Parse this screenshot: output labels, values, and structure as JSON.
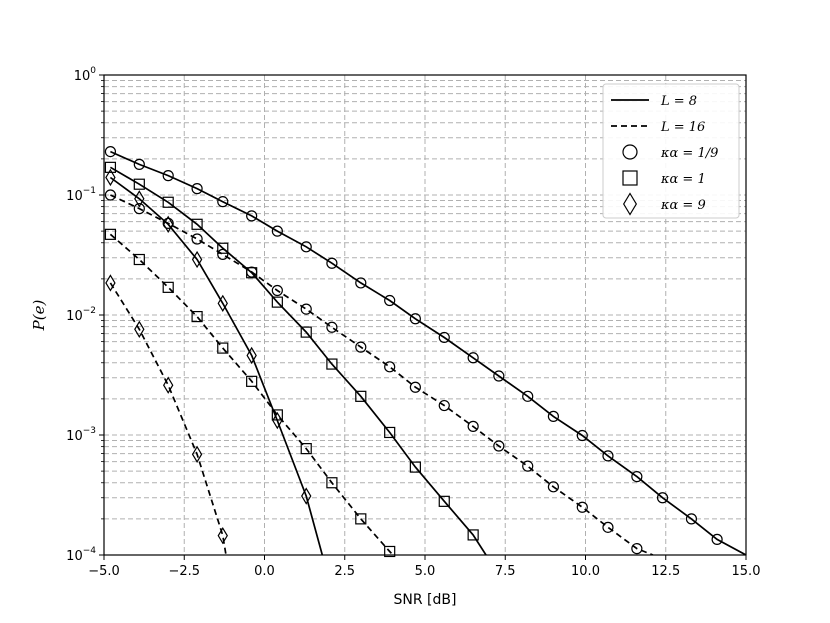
{
  "chart_data": {
    "type": "line",
    "title": "",
    "xlabel": "SNR [dB]",
    "ylabel": "P(e)",
    "xlim": [
      -5.0,
      15.0
    ],
    "ylim": [
      0.0001,
      1
    ],
    "yscale": "log",
    "grid": true,
    "legend_position": "top-right",
    "x_ticks": [
      "−5.0",
      "−2.5",
      "0.0",
      "2.5",
      "5.0",
      "7.5",
      "10.0",
      "12.5",
      "15.0"
    ],
    "y_ticks": [
      {
        "base": "10",
        "exp": "0"
      },
      {
        "base": "10",
        "exp": "−1"
      },
      {
        "base": "10",
        "exp": "−2"
      },
      {
        "base": "10",
        "exp": "−3"
      },
      {
        "base": "10",
        "exp": "−4"
      }
    ],
    "legend": {
      "lines": [
        {
          "label": "L = 8",
          "style": "solid"
        },
        {
          "label": "L = 16",
          "style": "dashed"
        }
      ],
      "markers": [
        {
          "label": "κα = 1/9",
          "marker": "circle"
        },
        {
          "label": "κα = 1",
          "marker": "square"
        },
        {
          "label": "κα = 9",
          "marker": "diamond"
        }
      ]
    },
    "series": [
      {
        "L": 8,
        "kappa": "1/9",
        "style": "solid",
        "marker": "circle",
        "points": [
          [
            -4.8,
            0.23
          ],
          [
            -3.9,
            0.18
          ],
          [
            -3.0,
            0.145
          ],
          [
            -2.1,
            0.113
          ],
          [
            -1.3,
            0.088
          ],
          [
            -0.4,
            0.067
          ],
          [
            0.4,
            0.05
          ],
          [
            1.3,
            0.037
          ],
          [
            2.1,
            0.027
          ],
          [
            3.0,
            0.0185
          ],
          [
            3.9,
            0.0132
          ],
          [
            4.7,
            0.0093
          ],
          [
            5.6,
            0.0065
          ],
          [
            6.5,
            0.0044
          ],
          [
            7.3,
            0.0031
          ],
          [
            8.2,
            0.0021
          ],
          [
            9.0,
            0.00143
          ],
          [
            9.9,
            0.00099
          ],
          [
            10.7,
            0.00067
          ],
          [
            11.6,
            0.00045
          ],
          [
            12.4,
            0.0003
          ],
          [
            13.3,
            0.0002
          ],
          [
            14.1,
            0.000135
          ],
          [
            15.0,
            0.0001
          ]
        ],
        "marker_count": 23
      },
      {
        "L": 16,
        "kappa": "1/9",
        "style": "dashed",
        "marker": "circle",
        "points": [
          [
            -4.8,
            0.1
          ],
          [
            -3.9,
            0.077
          ],
          [
            -3.0,
            0.058
          ],
          [
            -2.1,
            0.043
          ],
          [
            -1.3,
            0.032
          ],
          [
            -0.4,
            0.0228
          ],
          [
            0.4,
            0.016
          ],
          [
            1.3,
            0.0112
          ],
          [
            2.1,
            0.0079
          ],
          [
            3.0,
            0.0054
          ],
          [
            3.9,
            0.0037
          ],
          [
            4.7,
            0.0025
          ],
          [
            5.6,
            0.00176
          ],
          [
            6.5,
            0.00118
          ],
          [
            7.3,
            0.00081
          ],
          [
            8.2,
            0.00055
          ],
          [
            9.0,
            0.00037
          ],
          [
            9.9,
            0.00025
          ],
          [
            10.7,
            0.00017
          ],
          [
            11.6,
            0.000113
          ],
          [
            12.1,
            0.0001
          ]
        ],
        "marker_count": 20
      },
      {
        "L": 8,
        "kappa": "1",
        "style": "solid",
        "marker": "square",
        "points": [
          [
            -4.8,
            0.17
          ],
          [
            -3.9,
            0.123
          ],
          [
            -3.0,
            0.087
          ],
          [
            -2.1,
            0.057
          ],
          [
            -1.3,
            0.036
          ],
          [
            -0.4,
            0.0225
          ],
          [
            0.4,
            0.0128
          ],
          [
            1.3,
            0.0072
          ],
          [
            2.1,
            0.0039
          ],
          [
            3.0,
            0.0021
          ],
          [
            3.9,
            0.00105
          ],
          [
            4.7,
            0.00054
          ],
          [
            5.6,
            0.00028
          ],
          [
            6.5,
            0.000147
          ],
          [
            6.9,
            0.0001
          ]
        ],
        "marker_count": 14
      },
      {
        "L": 16,
        "kappa": "1",
        "style": "dashed",
        "marker": "square",
        "points": [
          [
            -4.8,
            0.047
          ],
          [
            -3.9,
            0.029
          ],
          [
            -3.0,
            0.017
          ],
          [
            -2.1,
            0.0097
          ],
          [
            -1.3,
            0.0053
          ],
          [
            -0.4,
            0.0028
          ],
          [
            0.4,
            0.00147
          ],
          [
            1.3,
            0.00077
          ],
          [
            2.1,
            0.0004
          ],
          [
            3.0,
            0.0002
          ],
          [
            3.9,
            0.000107
          ],
          [
            4.0,
            0.0001
          ]
        ],
        "marker_count": 11
      },
      {
        "L": 8,
        "kappa": "9",
        "style": "solid",
        "marker": "diamond",
        "points": [
          [
            -4.8,
            0.14
          ],
          [
            -3.9,
            0.093
          ],
          [
            -3.0,
            0.057
          ],
          [
            -2.1,
            0.029
          ],
          [
            -1.3,
            0.0125
          ],
          [
            -0.4,
            0.0046
          ],
          [
            0.4,
            0.00132
          ],
          [
            1.3,
            0.00031
          ],
          [
            1.8,
            0.0001
          ]
        ],
        "marker_count": 8
      },
      {
        "L": 16,
        "kappa": "9",
        "style": "dashed",
        "marker": "diamond",
        "points": [
          [
            -4.8,
            0.0185
          ],
          [
            -3.9,
            0.0076
          ],
          [
            -3.0,
            0.0026
          ],
          [
            -2.1,
            0.00069
          ],
          [
            -1.3,
            0.000145
          ],
          [
            -1.2,
            0.0001
          ]
        ],
        "marker_count": 5
      }
    ]
  }
}
